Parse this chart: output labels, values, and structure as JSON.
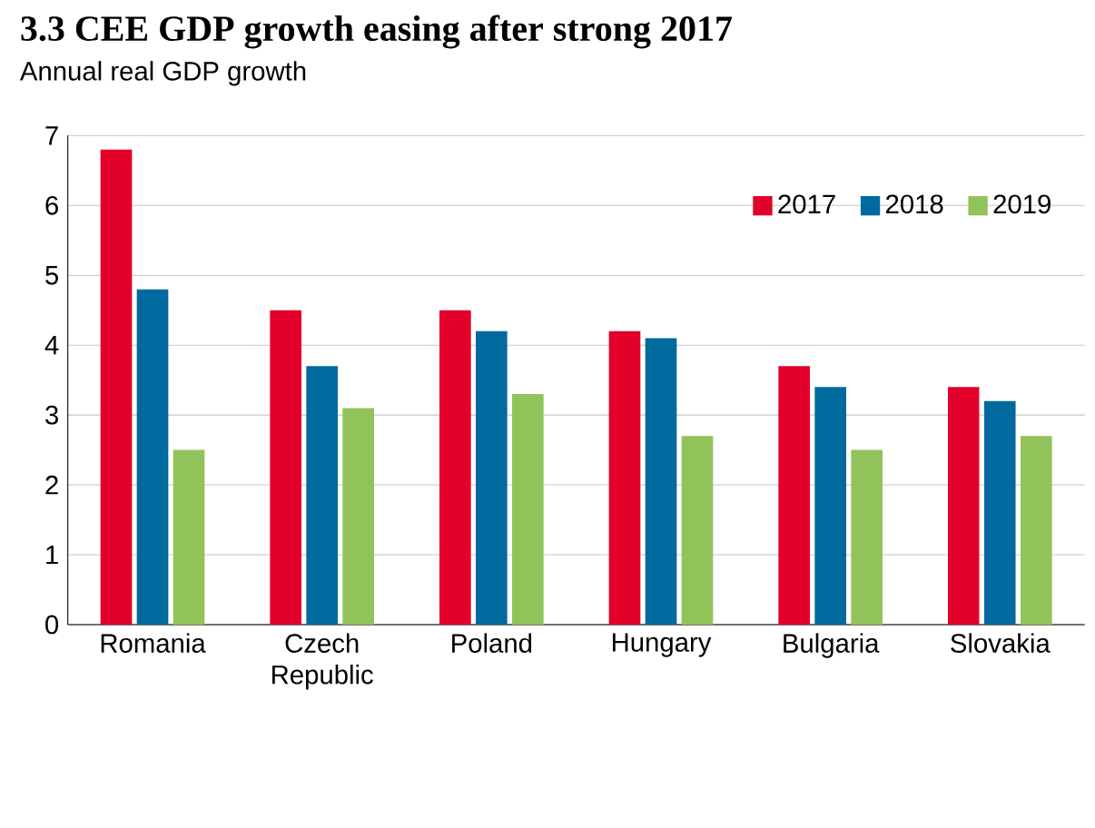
{
  "chart_data": {
    "type": "bar",
    "title": "3.3 CEE GDP growth easing after strong 2017",
    "subtitle": "Annual real GDP growth",
    "categories": [
      "Romania",
      "Czech Republic",
      "Poland",
      "Hungary",
      "Bulgaria",
      "Slovakia"
    ],
    "series": [
      {
        "name": "2017",
        "color": "#e2002a",
        "values": [
          6.8,
          4.5,
          4.5,
          4.2,
          3.7,
          3.4
        ]
      },
      {
        "name": "2018",
        "color": "#006a9e",
        "values": [
          4.8,
          3.7,
          4.2,
          4.1,
          3.4,
          3.2
        ]
      },
      {
        "name": "2019",
        "color": "#92c35a",
        "values": [
          2.5,
          3.1,
          3.3,
          2.7,
          2.5,
          2.7
        ]
      }
    ],
    "ylim": [
      0,
      7
    ],
    "yticks": [
      0,
      1,
      2,
      3,
      4,
      5,
      6,
      7
    ],
    "grid": "y",
    "legend": "top right"
  }
}
